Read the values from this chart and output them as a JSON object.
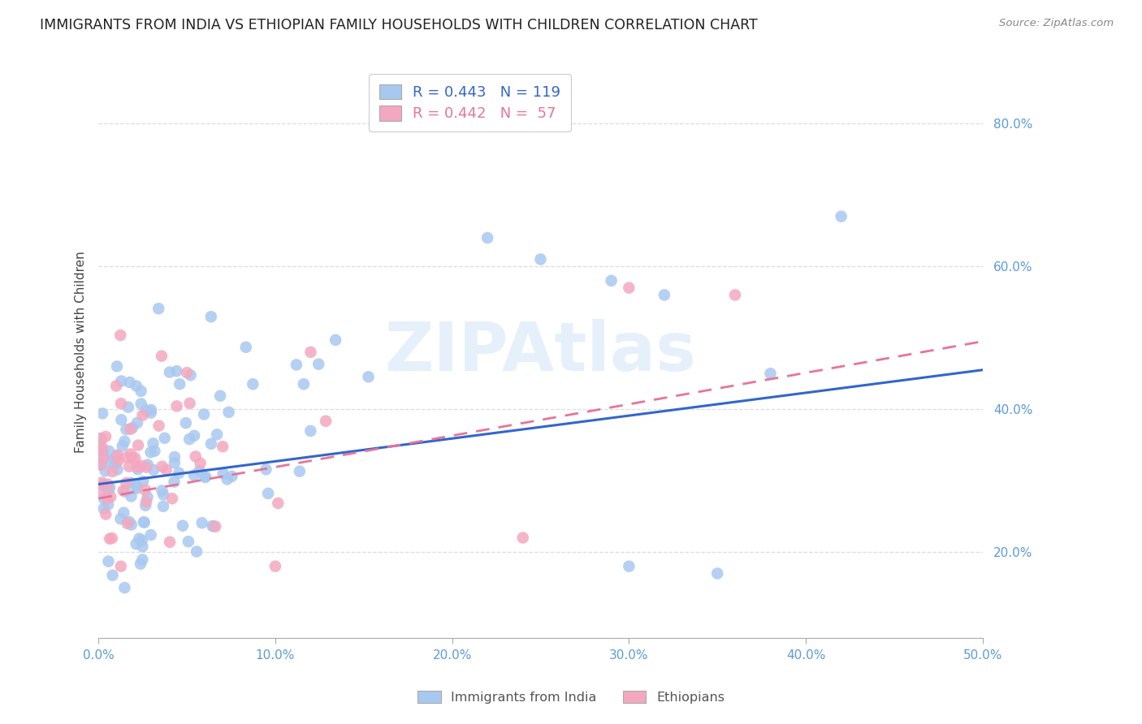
{
  "title": "IMMIGRANTS FROM INDIA VS ETHIOPIAN FAMILY HOUSEHOLDS WITH CHILDREN CORRELATION CHART",
  "source": "Source: ZipAtlas.com",
  "ylabel": "Family Households with Children",
  "xlim": [
    0.0,
    0.5
  ],
  "ylim": [
    0.08,
    0.88
  ],
  "xticks": [
    0.0,
    0.1,
    0.2,
    0.3,
    0.4,
    0.5
  ],
  "yticks": [
    0.2,
    0.4,
    0.6,
    0.8
  ],
  "ytick_labels": [
    "20.0%",
    "40.0%",
    "60.0%",
    "80.0%"
  ],
  "xtick_labels": [
    "0.0%",
    "10.0%",
    "20.0%",
    "30.0%",
    "40.0%",
    "50.0%"
  ],
  "color_india": "#A8C8F0",
  "color_ethiopia": "#F4A8C0",
  "trendline_india_color": "#3366CC",
  "trendline_ethiopia_color": "#E87497",
  "background_color": "#FFFFFF",
  "grid_color": "#DDDDDD",
  "tick_color": "#5B9BD5",
  "legend_R_india": "R = 0.443",
  "legend_N_india": "N = 119",
  "legend_R_ethiopia": "R = 0.442",
  "legend_N_ethiopia": "N =  57",
  "title_fontsize": 12.5,
  "axis_label_fontsize": 11,
  "tick_fontsize": 11,
  "watermark": "ZIPAtlas"
}
